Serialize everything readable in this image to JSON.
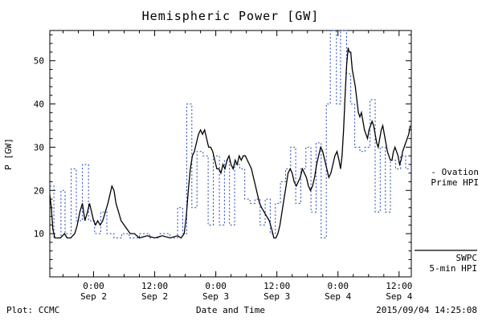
{
  "title": "Hemispheric Power [GW]",
  "footer": {
    "plot_source": "Plot: CCMC",
    "xlabel": "Date and Time",
    "timestamp": "2015/09/04 14:25:08"
  },
  "legend": {
    "ovation": {
      "line1": "- Ovation",
      "line2": "Prime HPI",
      "color": "#2244bb"
    },
    "swpc": {
      "line1": "SWPC",
      "line2": "5-min HPI",
      "color": "#000000"
    }
  },
  "chart_data": {
    "type": "line",
    "title": "Hemispheric Power [GW]",
    "xlabel": "Date and Time",
    "ylabel": "P [GW]",
    "ylim": [
      0,
      57
    ],
    "xlim_hours_since_sep1": [
      15.4,
      86.4
    ],
    "grid": false,
    "legend_position": "right-outside",
    "y_ticks": [
      10,
      20,
      30,
      40,
      50
    ],
    "x_ticks": [
      {
        "hour": 24,
        "time": "0:00",
        "date": "Sep 2"
      },
      {
        "hour": 36,
        "time": "12:00",
        "date": "Sep 2"
      },
      {
        "hour": 48,
        "time": "0:00",
        "date": "Sep 3"
      },
      {
        "hour": 60,
        "time": "12:00",
        "date": "Sep 3"
      },
      {
        "hour": 72,
        "time": "0:00",
        "date": "Sep 4"
      },
      {
        "hour": 84,
        "time": "12:00",
        "date": "Sep 4"
      }
    ],
    "series": [
      {
        "name": "Ovation Prime HPI",
        "color": "#2244bb",
        "line_style": "dotted",
        "step": true,
        "points": [
          [
            15.4,
            21
          ],
          [
            16.2,
            9
          ],
          [
            17.6,
            20
          ],
          [
            18.4,
            10
          ],
          [
            19.6,
            25
          ],
          [
            20.6,
            13
          ],
          [
            21.8,
            26
          ],
          [
            23.0,
            13
          ],
          [
            24.2,
            10
          ],
          [
            25.4,
            15
          ],
          [
            26.6,
            10
          ],
          [
            28.0,
            9
          ],
          [
            29.5,
            10
          ],
          [
            31.0,
            9
          ],
          [
            33.0,
            10
          ],
          [
            35.0,
            9
          ],
          [
            37.0,
            10
          ],
          [
            39.0,
            9
          ],
          [
            40.5,
            16
          ],
          [
            41.5,
            10
          ],
          [
            42.3,
            40
          ],
          [
            43.3,
            16
          ],
          [
            44.3,
            29
          ],
          [
            45.5,
            28
          ],
          [
            46.5,
            12
          ],
          [
            47.5,
            28
          ],
          [
            48.7,
            12
          ],
          [
            49.7,
            27
          ],
          [
            50.7,
            12
          ],
          [
            51.7,
            26
          ],
          [
            52.7,
            25
          ],
          [
            53.7,
            18
          ],
          [
            54.7,
            17
          ],
          [
            55.7,
            18
          ],
          [
            56.7,
            12
          ],
          [
            57.7,
            18
          ],
          [
            58.7,
            10
          ],
          [
            59.7,
            17
          ],
          [
            60.7,
            22
          ],
          [
            61.7,
            25
          ],
          [
            62.7,
            30
          ],
          [
            63.7,
            17
          ],
          [
            64.7,
            25
          ],
          [
            65.7,
            30
          ],
          [
            66.7,
            15
          ],
          [
            67.7,
            31
          ],
          [
            68.7,
            9
          ],
          [
            69.7,
            40
          ],
          [
            70.5,
            57
          ],
          [
            71.7,
            40
          ],
          [
            72.5,
            57
          ],
          [
            73.7,
            47
          ],
          [
            74.5,
            40
          ],
          [
            75.3,
            30
          ],
          [
            76.3,
            29
          ],
          [
            77.3,
            30
          ],
          [
            78.3,
            41
          ],
          [
            79.3,
            15
          ],
          [
            80.3,
            30
          ],
          [
            81.3,
            15
          ],
          [
            82.3,
            27
          ],
          [
            83.3,
            25
          ],
          [
            84.3,
            28
          ],
          [
            85.3,
            25
          ]
        ]
      },
      {
        "name": "SWPC 5-min HPI",
        "color": "#000000",
        "line_style": "solid",
        "step": false,
        "points": [
          [
            15.4,
            19
          ],
          [
            15.7,
            16
          ],
          [
            16.0,
            11
          ],
          [
            16.4,
            9
          ],
          [
            17.5,
            9
          ],
          [
            18.3,
            10
          ],
          [
            18.8,
            9
          ],
          [
            19.5,
            9
          ],
          [
            20.3,
            10
          ],
          [
            20.8,
            12
          ],
          [
            21.3,
            15
          ],
          [
            21.8,
            17
          ],
          [
            22.3,
            13
          ],
          [
            22.8,
            15
          ],
          [
            23.2,
            17
          ],
          [
            23.6,
            15
          ],
          [
            24.0,
            13
          ],
          [
            24.4,
            12
          ],
          [
            24.8,
            13
          ],
          [
            25.3,
            12
          ],
          [
            25.8,
            13
          ],
          [
            26.3,
            15
          ],
          [
            26.8,
            17
          ],
          [
            27.2,
            19
          ],
          [
            27.6,
            21
          ],
          [
            28.0,
            20
          ],
          [
            28.4,
            17
          ],
          [
            28.9,
            15
          ],
          [
            29.4,
            13
          ],
          [
            30.0,
            12
          ],
          [
            30.6,
            11
          ],
          [
            31.2,
            10
          ],
          [
            32.0,
            10
          ],
          [
            33.0,
            9
          ],
          [
            34.5,
            9.5
          ],
          [
            36.0,
            9
          ],
          [
            37.5,
            9.5
          ],
          [
            39.0,
            9
          ],
          [
            40.5,
            9.5
          ],
          [
            41.2,
            9
          ],
          [
            41.8,
            10
          ],
          [
            42.2,
            14
          ],
          [
            42.6,
            20
          ],
          [
            43.0,
            25
          ],
          [
            43.4,
            28
          ],
          [
            43.8,
            29
          ],
          [
            44.2,
            31
          ],
          [
            44.6,
            33
          ],
          [
            45.0,
            34
          ],
          [
            45.4,
            33
          ],
          [
            45.8,
            34
          ],
          [
            46.2,
            32
          ],
          [
            46.6,
            30
          ],
          [
            47.0,
            30
          ],
          [
            47.4,
            29
          ],
          [
            47.8,
            27
          ],
          [
            48.2,
            25
          ],
          [
            48.6,
            25
          ],
          [
            49.0,
            24
          ],
          [
            49.4,
            26
          ],
          [
            49.8,
            25
          ],
          [
            50.2,
            27
          ],
          [
            50.6,
            28
          ],
          [
            51.0,
            26
          ],
          [
            51.4,
            25
          ],
          [
            51.8,
            27
          ],
          [
            52.2,
            26
          ],
          [
            52.6,
            28
          ],
          [
            53.0,
            27
          ],
          [
            53.4,
            28
          ],
          [
            53.8,
            28
          ],
          [
            54.2,
            27
          ],
          [
            54.6,
            26
          ],
          [
            55.0,
            25
          ],
          [
            55.4,
            23
          ],
          [
            55.8,
            21
          ],
          [
            56.2,
            19
          ],
          [
            56.6,
            17
          ],
          [
            57.0,
            16
          ],
          [
            57.5,
            15
          ],
          [
            58.0,
            14
          ],
          [
            58.5,
            13
          ],
          [
            59.0,
            11
          ],
          [
            59.4,
            9
          ],
          [
            59.8,
            9
          ],
          [
            60.2,
            10
          ],
          [
            60.6,
            12
          ],
          [
            61.0,
            15
          ],
          [
            61.4,
            18
          ],
          [
            61.8,
            21
          ],
          [
            62.2,
            24
          ],
          [
            62.6,
            25
          ],
          [
            63.0,
            24
          ],
          [
            63.4,
            22
          ],
          [
            63.8,
            21
          ],
          [
            64.2,
            22
          ],
          [
            64.6,
            23
          ],
          [
            65.0,
            25
          ],
          [
            65.4,
            24
          ],
          [
            65.8,
            23
          ],
          [
            66.2,
            21
          ],
          [
            66.6,
            20
          ],
          [
            67.0,
            21
          ],
          [
            67.4,
            23
          ],
          [
            67.8,
            26
          ],
          [
            68.2,
            28
          ],
          [
            68.6,
            30
          ],
          [
            69.0,
            29
          ],
          [
            69.4,
            27
          ],
          [
            69.8,
            25
          ],
          [
            70.2,
            23
          ],
          [
            70.6,
            24
          ],
          [
            71.0,
            26
          ],
          [
            71.4,
            28
          ],
          [
            71.8,
            29
          ],
          [
            72.2,
            27
          ],
          [
            72.5,
            25
          ],
          [
            72.8,
            28
          ],
          [
            73.1,
            34
          ],
          [
            73.4,
            42
          ],
          [
            73.7,
            49
          ],
          [
            74.0,
            53
          ],
          [
            74.2,
            52
          ],
          [
            74.5,
            52
          ],
          [
            74.8,
            48
          ],
          [
            75.1,
            46
          ],
          [
            75.4,
            44
          ],
          [
            75.7,
            41
          ],
          [
            76.0,
            38
          ],
          [
            76.3,
            37
          ],
          [
            76.6,
            38
          ],
          [
            76.9,
            36
          ],
          [
            77.2,
            34
          ],
          [
            77.5,
            33
          ],
          [
            77.8,
            32
          ],
          [
            78.1,
            34
          ],
          [
            78.4,
            35
          ],
          [
            78.7,
            36
          ],
          [
            79.0,
            35
          ],
          [
            79.3,
            33
          ],
          [
            79.6,
            31
          ],
          [
            79.9,
            30
          ],
          [
            80.2,
            32
          ],
          [
            80.5,
            34
          ],
          [
            80.8,
            35
          ],
          [
            81.1,
            33
          ],
          [
            81.4,
            31
          ],
          [
            81.7,
            29
          ],
          [
            82.0,
            28
          ],
          [
            82.3,
            27
          ],
          [
            82.6,
            27
          ],
          [
            82.9,
            29
          ],
          [
            83.2,
            30
          ],
          [
            83.5,
            29
          ],
          [
            83.8,
            28
          ],
          [
            84.1,
            26
          ],
          [
            84.4,
            27
          ],
          [
            84.7,
            29
          ],
          [
            85.0,
            30
          ],
          [
            85.3,
            31
          ],
          [
            85.6,
            32
          ],
          [
            85.9,
            33
          ],
          [
            86.2,
            35
          ]
        ]
      }
    ]
  }
}
